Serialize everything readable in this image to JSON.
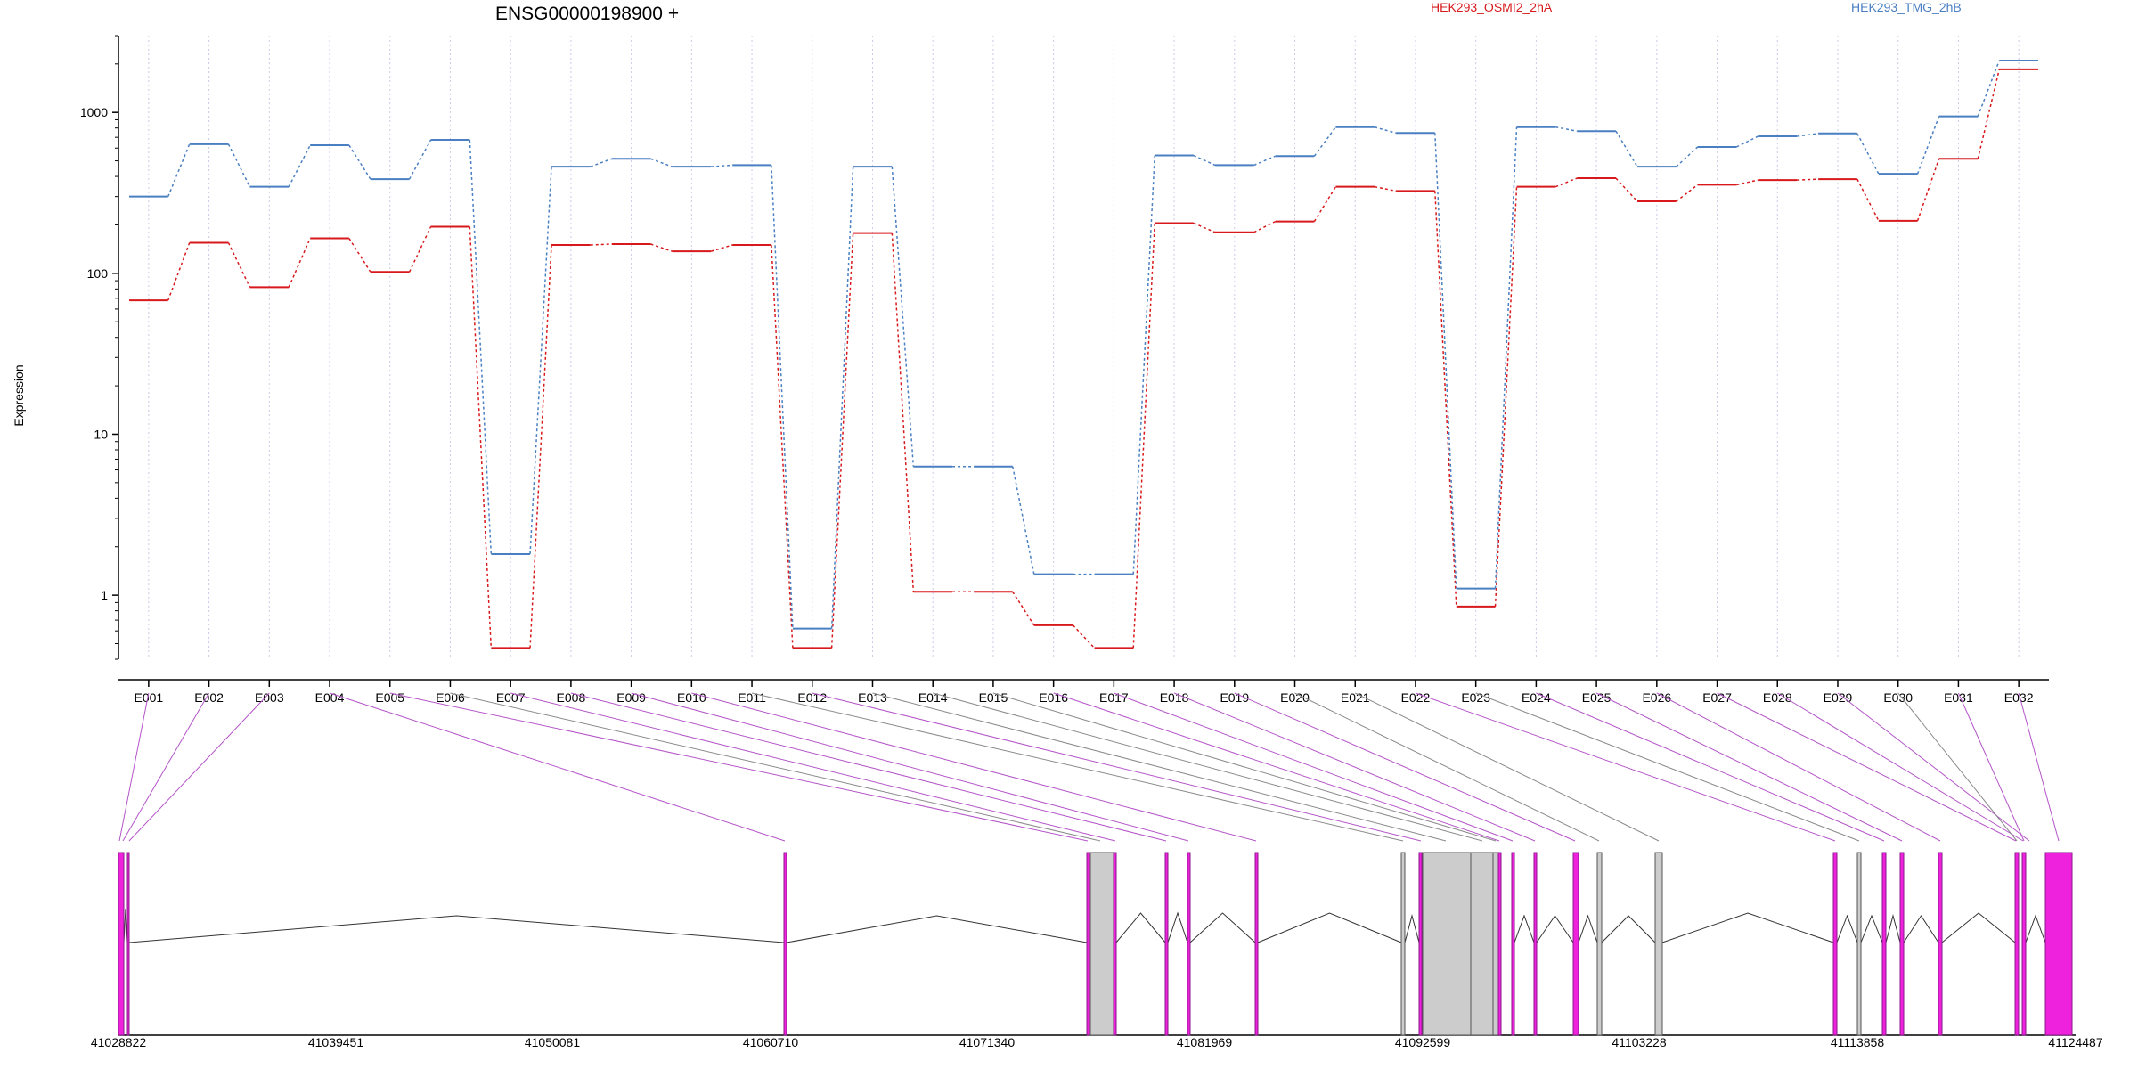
{
  "chart_data": {
    "type": "line",
    "title": "ENSG00000198900 +",
    "xlabel": "",
    "ylabel": "Expression",
    "yscale": "log",
    "ylim": [
      0.4,
      3000
    ],
    "yticks": [
      1,
      10,
      100,
      1000
    ],
    "ytick_labels": [
      "1",
      "10",
      "100",
      "1000"
    ],
    "grid": "vertical dotted",
    "legend_placement": "top",
    "categories": [
      "E001",
      "E002",
      "E003",
      "E004",
      "E005",
      "E006",
      "E007",
      "E008",
      "E009",
      "E010",
      "E011",
      "E012",
      "E013",
      "E014",
      "E015",
      "E016",
      "E017",
      "E018",
      "E019",
      "E020",
      "E021",
      "E022",
      "E023",
      "E024",
      "E025",
      "E026",
      "E027",
      "E028",
      "E029",
      "E030",
      "E031",
      "E032"
    ],
    "series": [
      {
        "name": "HEK293_OSMI2_2hA",
        "color": "#d7191c",
        "values": [
          68,
          155,
          82,
          165,
          102,
          195,
          0.47,
          150,
          152,
          137,
          150,
          0.47,
          178,
          1.05,
          1.05,
          0.65,
          0.47,
          205,
          180,
          210,
          345,
          325,
          0.85,
          345,
          390,
          280,
          355,
          380,
          385,
          212,
          515,
          1850
        ]
      },
      {
        "name": "HEK293_TMG_2hB",
        "color": "#4a7fc1",
        "values": [
          300,
          635,
          345,
          625,
          385,
          675,
          1.8,
          460,
          515,
          460,
          470,
          0.62,
          460,
          6.3,
          6.3,
          1.35,
          1.35,
          540,
          470,
          535,
          810,
          745,
          1.1,
          810,
          765,
          460,
          610,
          710,
          740,
          415,
          945,
          2100
        ]
      }
    ],
    "gene_model": {
      "coordinate_ticks": [
        "41028822",
        "41039451",
        "41050081",
        "41060710",
        "41071340",
        "41081969",
        "41092599",
        "41103228",
        "41113858",
        "41124487"
      ],
      "range": [
        41028822,
        41124487
      ],
      "exons_magenta_color": "#ee22dd",
      "exons_grey_color": "#cccccc"
    }
  }
}
